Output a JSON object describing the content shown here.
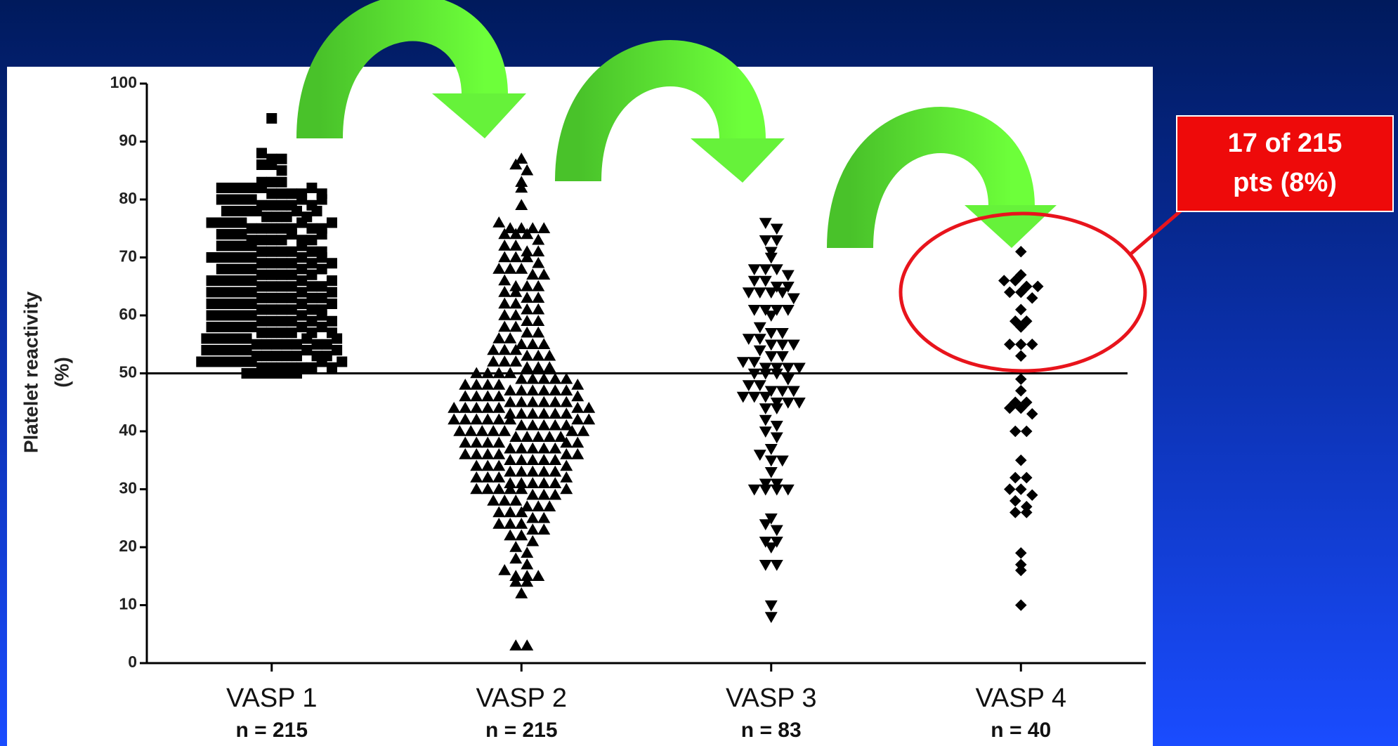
{
  "chart_data": {
    "type": "dotplot",
    "ylabel": [
      "Platelet reactivity",
      "(%)"
    ],
    "ylim": [
      0,
      100
    ],
    "yticks": [
      0,
      10,
      20,
      30,
      40,
      50,
      60,
      70,
      80,
      90,
      100
    ],
    "reference_line": 50,
    "annotation": [
      "17 of 215",
      "pts (8%)"
    ],
    "series": [
      {
        "name": "VASP 1",
        "note": "n = 215",
        "marker": "square",
        "color": "#000000",
        "values": [
          94,
          88,
          87,
          87,
          86,
          86,
          85,
          83,
          83,
          83,
          82,
          82,
          82,
          82,
          82,
          81,
          81,
          81,
          81,
          80,
          80,
          80,
          80,
          79,
          79,
          79,
          79,
          78,
          78,
          78,
          78,
          77,
          77,
          77,
          76,
          76,
          76,
          76,
          75,
          75,
          75,
          75,
          75,
          74,
          74,
          74,
          73,
          73,
          73,
          73,
          72,
          72,
          72,
          72,
          71,
          71,
          71,
          71,
          70,
          70,
          70,
          70,
          70,
          69,
          69,
          69,
          69,
          68,
          68,
          68,
          68,
          67,
          67,
          67,
          67,
          66,
          66,
          66,
          66,
          66,
          65,
          65,
          65,
          65,
          64,
          64,
          64,
          64,
          64,
          63,
          63,
          63,
          63,
          62,
          62,
          62,
          62,
          62,
          61,
          61,
          61,
          61,
          60,
          60,
          60,
          60,
          60,
          59,
          59,
          59,
          59,
          58,
          58,
          58,
          58,
          58,
          57,
          57,
          57,
          57,
          56,
          56,
          56,
          56,
          56,
          55,
          55,
          55,
          55,
          55,
          54,
          54,
          54,
          54,
          54,
          53,
          53,
          53,
          53,
          53,
          52,
          52,
          52,
          52,
          52,
          52,
          51,
          51,
          51,
          51,
          51,
          51,
          50,
          50,
          50,
          50,
          50,
          50,
          82,
          80,
          78,
          76,
          74,
          72,
          70,
          68,
          66,
          64,
          62,
          60,
          58,
          56,
          54,
          52,
          81,
          79,
          77,
          75,
          73,
          71,
          69,
          67,
          65,
          63,
          61,
          59,
          57,
          55,
          53,
          51,
          80,
          75,
          70,
          65,
          60,
          55,
          78,
          73,
          68,
          63,
          58,
          53,
          76,
          71,
          66,
          61,
          56,
          52,
          74,
          69,
          64,
          59,
          54,
          62,
          57
        ]
      },
      {
        "name": "VASP 2",
        "note": "n = 215",
        "marker": "triangle-up",
        "color": "#000000",
        "values": [
          87,
          86,
          85,
          83,
          82,
          79,
          76,
          75,
          75,
          75,
          75,
          74,
          74,
          74,
          73,
          72,
          72,
          71,
          71,
          70,
          70,
          70,
          69,
          68,
          68,
          68,
          67,
          67,
          66,
          65,
          65,
          65,
          64,
          64,
          63,
          63,
          62,
          62,
          61,
          61,
          60,
          60,
          59,
          59,
          58,
          58,
          57,
          57,
          56,
          56,
          55,
          55,
          55,
          54,
          54,
          54,
          53,
          53,
          53,
          52,
          52,
          52,
          51,
          51,
          51,
          50,
          50,
          50,
          50,
          49,
          49,
          49,
          49,
          48,
          48,
          48,
          48,
          47,
          47,
          47,
          47,
          47,
          46,
          46,
          46,
          46,
          45,
          45,
          45,
          45,
          45,
          44,
          44,
          44,
          44,
          44,
          43,
          43,
          43,
          43,
          43,
          42,
          42,
          42,
          42,
          42,
          42,
          41,
          41,
          41,
          41,
          40,
          40,
          40,
          40,
          40,
          39,
          39,
          39,
          39,
          38,
          38,
          38,
          38,
          37,
          37,
          37,
          37,
          36,
          36,
          36,
          36,
          35,
          35,
          35,
          35,
          34,
          34,
          34,
          33,
          33,
          33,
          33,
          32,
          32,
          32,
          31,
          31,
          31,
          31,
          30,
          30,
          30,
          30,
          30,
          29,
          29,
          29,
          28,
          28,
          28,
          27,
          27,
          27,
          26,
          26,
          26,
          25,
          25,
          24,
          24,
          24,
          23,
          23,
          22,
          22,
          21,
          20,
          19,
          18,
          17,
          16,
          15,
          15,
          15,
          14,
          14,
          12,
          3,
          3,
          49,
          47,
          45,
          43,
          41,
          39,
          37,
          35,
          33,
          31,
          48,
          46,
          44,
          42,
          40,
          38,
          36,
          34,
          32,
          30,
          44,
          42,
          40,
          38,
          36
        ]
      },
      {
        "name": "VASP 3",
        "note": "n = 83",
        "marker": "triangle-down",
        "color": "#000000",
        "values": [
          76,
          75,
          73,
          73,
          71,
          70,
          68,
          68,
          68,
          67,
          66,
          66,
          65,
          65,
          64,
          64,
          64,
          64,
          63,
          61,
          61,
          61,
          61,
          60,
          58,
          57,
          57,
          56,
          56,
          55,
          55,
          55,
          54,
          53,
          53,
          52,
          52,
          51,
          51,
          51,
          51,
          50,
          50,
          50,
          49,
          48,
          48,
          47,
          47,
          47,
          46,
          46,
          46,
          45,
          45,
          45,
          44,
          44,
          42,
          41,
          40,
          39,
          37,
          36,
          35,
          35,
          33,
          31,
          31,
          30,
          30,
          30,
          30,
          25,
          24,
          23,
          21,
          21,
          20,
          17,
          17,
          10,
          8
        ]
      },
      {
        "name": "VASP 4",
        "note": "n = 40",
        "marker": "diamond",
        "color": "#000000",
        "values": [
          71,
          67,
          66,
          66,
          65,
          65,
          64,
          64,
          63,
          61,
          59,
          59,
          58,
          55,
          55,
          55,
          53,
          49,
          47,
          45,
          45,
          44,
          44,
          43,
          40,
          40,
          35,
          32,
          32,
          30,
          30,
          29,
          28,
          27,
          26,
          26,
          19,
          17,
          16,
          10
        ]
      }
    ]
  }
}
